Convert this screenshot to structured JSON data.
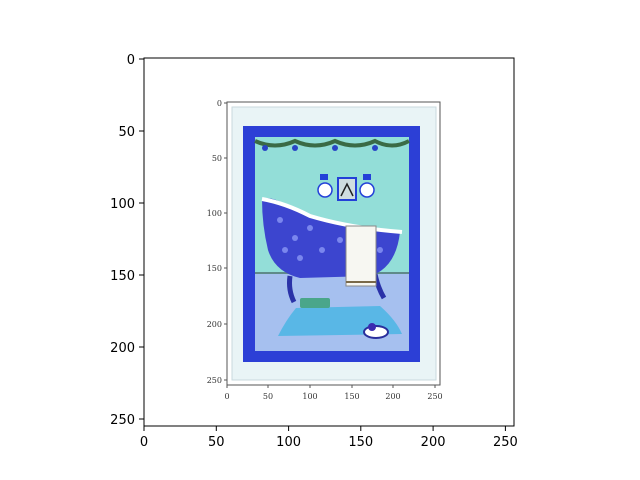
{
  "outer_axes": {
    "x_ticks": [
      "0",
      "50",
      "100",
      "150",
      "200",
      "250"
    ],
    "y_ticks": [
      "0",
      "50",
      "100",
      "150",
      "200",
      "250"
    ],
    "xlim": [
      0,
      256
    ],
    "ylim": [
      256,
      0
    ]
  },
  "inner_axes": {
    "x_ticks": [
      "0",
      "50",
      "100",
      "150",
      "200",
      "250"
    ],
    "y_ticks": [
      "0",
      "50",
      "100",
      "150",
      "200",
      "250"
    ]
  },
  "colors": {
    "mat": "#e9f4f6",
    "border_blue": "#2c3fd6",
    "wall": "#93ded8",
    "floor": "#a6c0ef",
    "tub": "#3c45cf",
    "towel": "#f7f7f2",
    "rug": "#59b7e6"
  }
}
